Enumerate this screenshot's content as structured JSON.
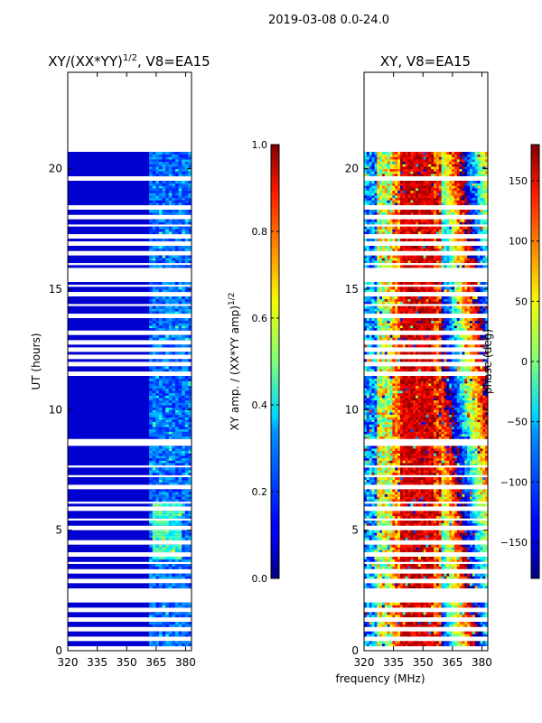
{
  "figure": {
    "suptitle": "2019-03-08 0.0-24.0",
    "xlabel": "frequency (MHz)"
  },
  "chart_data": [
    {
      "type": "heatmap",
      "title": "XY/(XX*YY)",
      "title_exponent": "1/2",
      "title_suffix": ", V8=EA15",
      "xlabel": "",
      "ylabel": "UT (hours)",
      "x_ticks": [
        320,
        335,
        350,
        365,
        380
      ],
      "y_ticks": [
        0,
        5,
        10,
        15,
        20
      ],
      "xlim": [
        320,
        383
      ],
      "ylim": [
        0,
        24
      ],
      "data_coverage_hours": [
        0,
        21
      ],
      "colorbar": {
        "label": "XY amp. / (XX*YY amp)",
        "label_exponent": "1/2",
        "range": [
          0.0,
          1.0
        ],
        "ticks": [
          "0.0",
          "0.2",
          "0.4",
          "0.6",
          "0.8",
          "1.0"
        ],
        "tick_values": [
          0.0,
          0.2,
          0.4,
          0.6,
          0.8,
          1.0
        ],
        "colormap": "jet"
      }
    },
    {
      "type": "heatmap",
      "title": "XY, V8=EA15",
      "xlabel": "frequency (MHz)",
      "ylabel": "",
      "x_ticks": [
        320,
        335,
        350,
        365,
        380
      ],
      "y_ticks": [
        0,
        5,
        10,
        15,
        20
      ],
      "xlim": [
        320,
        383
      ],
      "ylim": [
        0,
        24
      ],
      "data_coverage_hours": [
        0,
        21
      ],
      "colorbar": {
        "label": "phase (deg)",
        "range": [
          -180,
          180
        ],
        "ticks": [
          "150",
          "100",
          "50",
          "0",
          "−50",
          "−100",
          "−150"
        ],
        "tick_values": [
          150,
          100,
          50,
          0,
          -50,
          -100,
          -150
        ],
        "colormap": "jet"
      }
    }
  ],
  "gaps_hours": [
    [
      20.78,
      20.95
    ],
    [
      19.55,
      19.62
    ],
    [
      18.4,
      18.45
    ],
    [
      18.0,
      18.1
    ],
    [
      17.65,
      17.7
    ],
    [
      17.2,
      17.27
    ],
    [
      16.9,
      16.95
    ],
    [
      16.45,
      16.52
    ],
    [
      16.0,
      16.08
    ],
    [
      15.35,
      15.9
    ],
    [
      15.1,
      15.15
    ],
    [
      14.75,
      14.82
    ],
    [
      14.3,
      14.35
    ],
    [
      13.85,
      13.92
    ],
    [
      13.2,
      13.27
    ],
    [
      12.75,
      12.85
    ],
    [
      12.45,
      12.52
    ],
    [
      12.2,
      12.25
    ],
    [
      11.85,
      11.92
    ],
    [
      11.45,
      11.52
    ],
    [
      8.55,
      8.72
    ],
    [
      7.6,
      7.68
    ],
    [
      7.2,
      7.25
    ],
    [
      6.75,
      6.82
    ],
    [
      6.15,
      6.2
    ],
    [
      5.85,
      5.92
    ],
    [
      5.45,
      5.5
    ],
    [
      5.05,
      5.12
    ],
    [
      4.45,
      4.52
    ],
    [
      3.95,
      4.02
    ],
    [
      3.65,
      3.7
    ],
    [
      3.25,
      3.32
    ],
    [
      2.85,
      2.92
    ],
    [
      2.45,
      2.52
    ],
    [
      2.0,
      2.4
    ],
    [
      1.7,
      1.75
    ],
    [
      1.3,
      1.37
    ],
    [
      0.85,
      0.92
    ],
    [
      0.45,
      0.55
    ],
    [
      0.0,
      0.15
    ]
  ]
}
